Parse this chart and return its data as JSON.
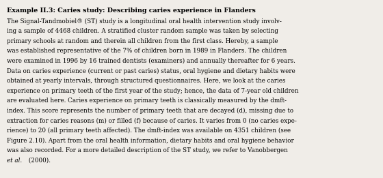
{
  "title": "Example II.3: Caries study: Describing caries experience in Flanders",
  "body_lines": [
    "The Signal-Tandmobiel® (ST) study is a longitudinal oral health intervention study involv-",
    "ing a sample of 4468 children. A stratified cluster random sample was taken by selecting",
    "primary schools at random and therein all children from the first class. Hereby, a sample",
    "was established representative of the 7% of children born in 1989 in Flanders. The children",
    "were examined in 1996 by 16 trained dentists (examiners) and annually thereafter for 6 years.",
    "Data on caries experience (current or past caries) status, oral hygiene and dietary habits were",
    "obtained at yearly intervals, through structured questionnaires. Here, we look at the caries",
    "experience on primary teeth of the first year of the study; hence, the data of 7-year old children",
    "are evaluated here. Caries experience on primary teeth is classically measured by the dmft-",
    "index. This score represents the number of primary teeth that are decayed (d), missing due to",
    "extraction for caries reasons (m) or filled (f) because of caries. It varies from 0 (no caries expe-",
    "rience) to 20 (all primary teeth affected). The dmft-index was available on 4351 children (see",
    "Figure 2.10). Apart from the oral health information, dietary habits and oral hygiene behavior",
    "was also recorded. For a more detailed description of the ST study, we refer to Vanobbergen",
    "et al. (2000)."
  ],
  "italic_prefix": "et al.",
  "background_color": "#f0ede8",
  "border_color": "#aaaaaa",
  "title_fontsize": 6.8,
  "body_fontsize": 6.3,
  "font_family": "DejaVu Serif"
}
